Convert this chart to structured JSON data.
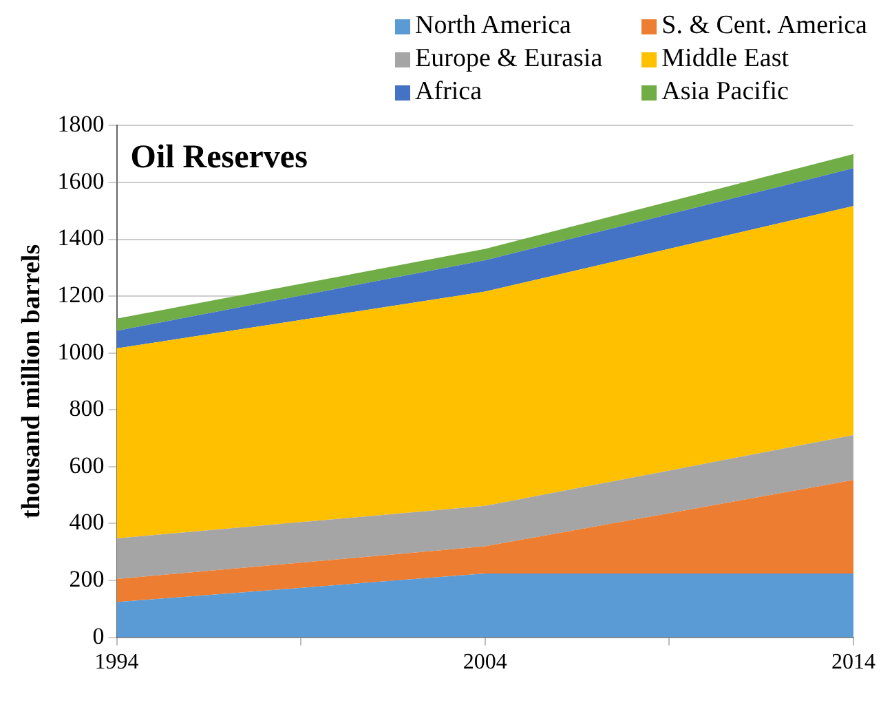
{
  "chart_data": {
    "type": "area",
    "title": "Oil Reserves",
    "ylabel": "thousand million barrels",
    "stacked": true,
    "x": [
      1994,
      2004,
      2014
    ],
    "series": [
      {
        "name": "North America",
        "color": "#5b9bd5",
        "values": [
          124,
          224,
          224
        ]
      },
      {
        "name": "S. & Cent. America",
        "color": "#ed7d31",
        "values": [
          81,
          96,
          329
        ]
      },
      {
        "name": "Europe & Eurasia",
        "color": "#a5a5a5",
        "values": [
          143,
          142,
          158
        ]
      },
      {
        "name": "Middle East",
        "color": "#ffc000",
        "values": [
          668,
          754,
          806
        ]
      },
      {
        "name": "Africa",
        "color": "#4472c4",
        "values": [
          62,
          110,
          133
        ]
      },
      {
        "name": "Asia Pacific",
        "color": "#70ad47",
        "values": [
          43,
          40,
          50
        ]
      }
    ],
    "xlim": [
      1994,
      2014
    ],
    "xticks": [
      1994,
      {
        "value": 1999,
        "label": null
      },
      2004,
      {
        "value": 2009,
        "label": null
      },
      2014
    ],
    "ylim": [
      0,
      1800
    ],
    "yticks": [
      0,
      200,
      400,
      600,
      800,
      1000,
      1200,
      1400,
      1600,
      1800
    ],
    "grid": "y",
    "legend": "top"
  }
}
